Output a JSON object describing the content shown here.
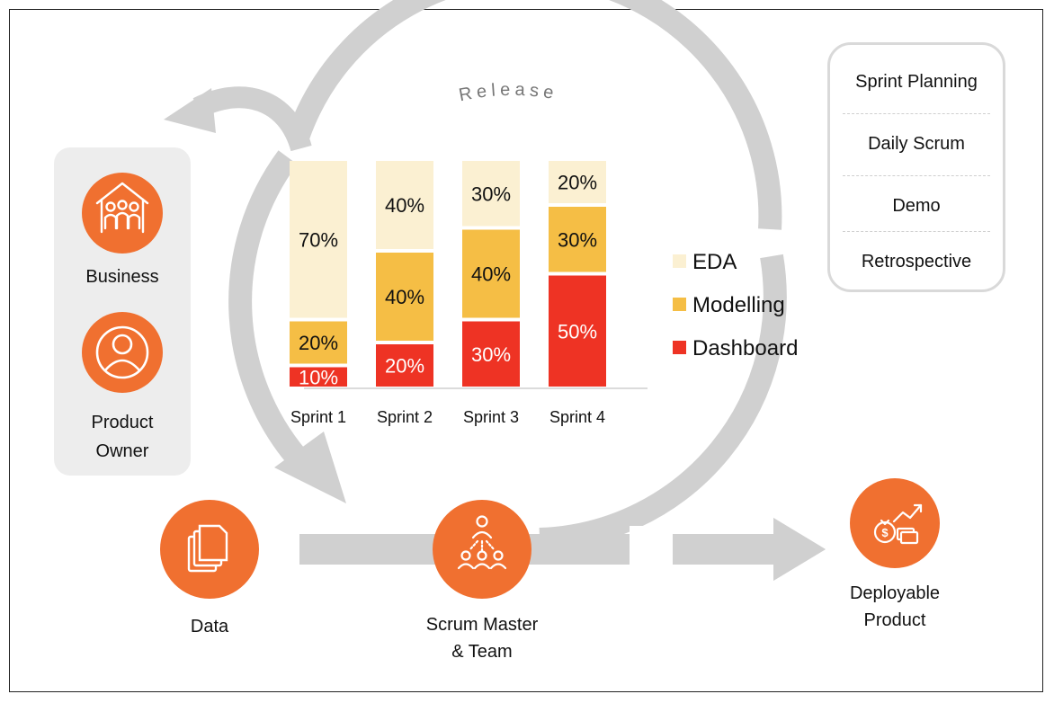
{
  "release_label": "Release",
  "stakeholders": {
    "business": "Business",
    "product_owner_line1": "Product",
    "product_owner_line2": "Owner"
  },
  "flow": {
    "data": "Data",
    "scrum_line1": "Scrum Master",
    "scrum_line2": "& Team",
    "deploy_line1": "Deployable",
    "deploy_line2": "Product"
  },
  "ceremonies": [
    "Sprint Planning",
    "Daily Scrum",
    "Demo",
    "Retrospective"
  ],
  "colors": {
    "orange": "#F07030",
    "arrow_gray": "#D0D0D0",
    "eda": "#FBF0D2",
    "modelling": "#F5BE45",
    "dashboard": "#EE3324"
  },
  "icons": [
    "house-people-icon",
    "user-circle-icon",
    "documents-icon",
    "team-icon",
    "money-growth-icon"
  ],
  "chart_data": {
    "type": "bar",
    "stacked": true,
    "categories": [
      "Sprint 1",
      "Sprint 2",
      "Sprint 3",
      "Sprint 4"
    ],
    "series": [
      {
        "name": "Dashboard",
        "values": [
          10,
          20,
          30,
          50
        ],
        "labels": [
          "10%",
          "20%",
          "30%",
          "50%"
        ],
        "color": "#EE3324"
      },
      {
        "name": "Modelling",
        "values": [
          20,
          40,
          40,
          30
        ],
        "labels": [
          "20%",
          "40%",
          "40%",
          "30%"
        ],
        "color": "#F5BE45"
      },
      {
        "name": "EDA",
        "values": [
          70,
          40,
          30,
          20
        ],
        "labels": [
          "70%",
          "40%",
          "30%",
          "20%"
        ],
        "color": "#FBF0D2"
      }
    ],
    "legend": [
      "EDA",
      "Modelling",
      "Dashboard"
    ],
    "legend_position": "right",
    "title": "",
    "xlabel": "",
    "ylabel": ""
  }
}
